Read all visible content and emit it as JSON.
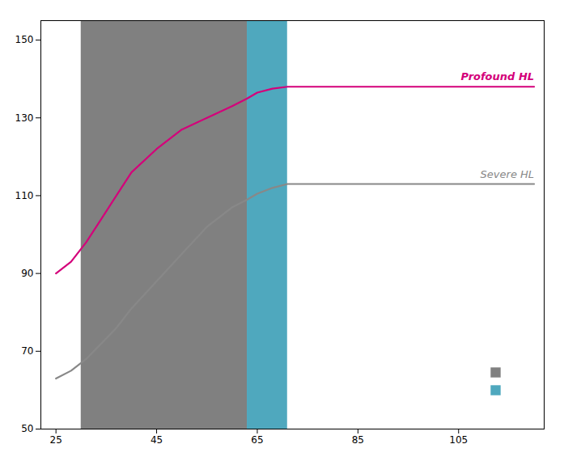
{
  "chart_data": {
    "type": "line",
    "x": [
      25,
      28,
      31,
      34,
      37,
      40,
      45,
      50,
      55,
      60,
      63,
      65,
      68,
      71,
      80,
      120
    ],
    "series": [
      {
        "name": "Profound HL",
        "color": "#d4007a",
        "values": [
          90,
          93,
          98,
          104,
          110,
          116,
          122,
          127,
          130,
          133,
          135,
          136.5,
          137.5,
          138,
          138,
          138
        ]
      },
      {
        "name": "Severe HL",
        "color": "#888888",
        "values": [
          63,
          65,
          68,
          72,
          76,
          81,
          88,
          95,
          102,
          107,
          109,
          110.5,
          112,
          113,
          113,
          113
        ]
      }
    ],
    "bands": [
      {
        "x": [
          30,
          63
        ],
        "color": "#808080"
      },
      {
        "x": [
          63,
          71
        ],
        "color": "#4fa8be"
      }
    ],
    "xlim": [
      22,
      122
    ],
    "ylim": [
      50,
      155
    ],
    "xticks": [
      25,
      45,
      65,
      85,
      105
    ],
    "yticks": [
      50,
      70,
      90,
      110,
      130,
      150
    ],
    "grid": false
  }
}
